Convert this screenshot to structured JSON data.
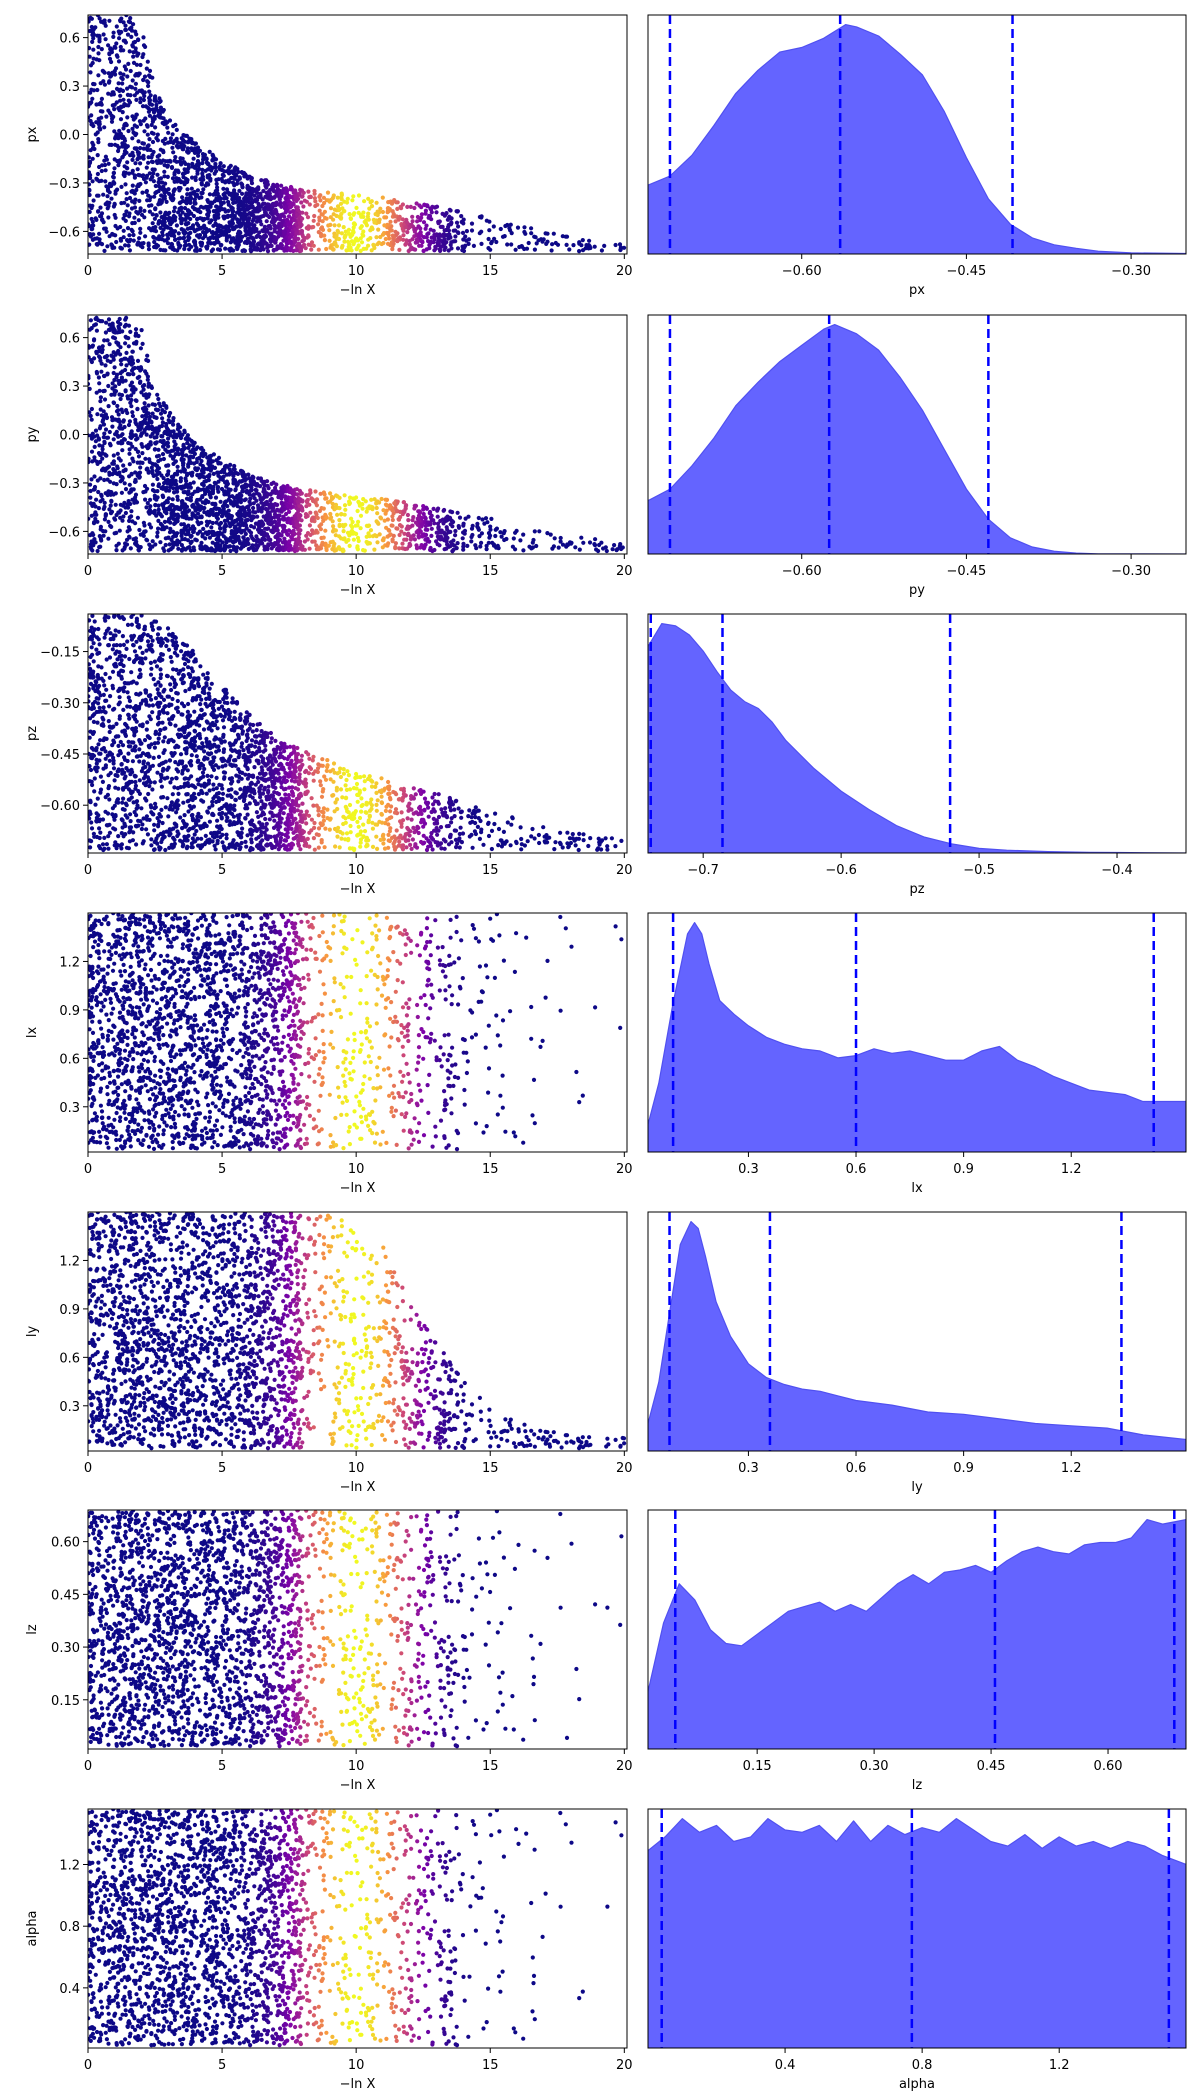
{
  "colors": {
    "kde_fill": "#6464ff",
    "kde_edge": "#5050f0",
    "quantile_line": "#0000ff",
    "colormap": [
      "#0d0887",
      "#7e03a8",
      "#cc4778",
      "#f89540",
      "#f0f921"
    ]
  },
  "chart_data": [
    {
      "type": "scatter",
      "panel": "trace-px",
      "xlabel": "−ln X",
      "ylabel": "px",
      "xlim": [
        0,
        20.1
      ],
      "ylim": [
        -0.74,
        0.74
      ],
      "xticks": [
        0,
        5,
        10,
        15,
        20
      ],
      "xtick_labels": [
        "0",
        "5",
        "10",
        "15",
        "20"
      ],
      "yticks": [
        0.6,
        0.3,
        0.0,
        -0.3,
        -0.6
      ],
      "ytick_labels": [
        "0.6",
        "0.3",
        "0.0",
        "−0.3",
        "−0.6"
      ],
      "envelope": [
        [
          0,
          0.74
        ],
        [
          1.5,
          0.74
        ],
        [
          2,
          0.65
        ],
        [
          2.5,
          0.3
        ],
        [
          3,
          0.1
        ],
        [
          4,
          -0.05
        ],
        [
          5,
          -0.15
        ],
        [
          6,
          -0.25
        ],
        [
          7,
          -0.3
        ],
        [
          8,
          -0.34
        ],
        [
          10,
          -0.37
        ],
        [
          12,
          -0.41
        ],
        [
          14,
          -0.48
        ],
        [
          15,
          -0.52
        ],
        [
          16,
          -0.56
        ],
        [
          17,
          -0.6
        ],
        [
          18,
          -0.63
        ],
        [
          19,
          -0.66
        ],
        [
          20,
          -0.68
        ]
      ],
      "color_peak": 10,
      "color_width": 1.5
    },
    {
      "type": "area",
      "panel": "kde-px",
      "xlabel": "px",
      "xlim": [
        -0.74,
        -0.25
      ],
      "xticks": [
        -0.6,
        -0.45,
        -0.3
      ],
      "xtick_labels": [
        "−0.60",
        "−0.45",
        "−0.30"
      ],
      "x": [
        -0.74,
        -0.72,
        -0.7,
        -0.68,
        -0.66,
        -0.64,
        -0.62,
        -0.6,
        -0.58,
        -0.56,
        -0.55,
        -0.53,
        -0.51,
        -0.49,
        -0.47,
        -0.45,
        -0.43,
        -0.41,
        -0.39,
        -0.37,
        -0.35,
        -0.33,
        -0.3,
        -0.25
      ],
      "density": [
        0.3,
        0.34,
        0.43,
        0.56,
        0.7,
        0.8,
        0.88,
        0.9,
        0.94,
        1.0,
        0.99,
        0.95,
        0.87,
        0.78,
        0.62,
        0.42,
        0.24,
        0.13,
        0.07,
        0.04,
        0.025,
        0.012,
        0.005,
        0.002
      ],
      "quantiles": [
        -0.72,
        -0.565,
        -0.408
      ]
    },
    {
      "type": "scatter",
      "panel": "trace-py",
      "xlabel": "−ln X",
      "ylabel": "py",
      "xlim": [
        0,
        20.1
      ],
      "ylim": [
        -0.74,
        0.74
      ],
      "xticks": [
        0,
        5,
        10,
        15,
        20
      ],
      "xtick_labels": [
        "0",
        "5",
        "10",
        "15",
        "20"
      ],
      "yticks": [
        0.6,
        0.3,
        0.0,
        -0.3,
        -0.6
      ],
      "ytick_labels": [
        "0.6",
        "0.3",
        "0.0",
        "−0.3",
        "−0.6"
      ],
      "envelope": [
        [
          0,
          0.74
        ],
        [
          1.5,
          0.74
        ],
        [
          2,
          0.65
        ],
        [
          2.5,
          0.3
        ],
        [
          3,
          0.15
        ],
        [
          4,
          -0.05
        ],
        [
          5,
          -0.15
        ],
        [
          6,
          -0.25
        ],
        [
          7,
          -0.3
        ],
        [
          8,
          -0.34
        ],
        [
          10,
          -0.38
        ],
        [
          12,
          -0.42
        ],
        [
          14,
          -0.49
        ],
        [
          15,
          -0.52
        ],
        [
          16,
          -0.56
        ],
        [
          17,
          -0.6
        ],
        [
          18,
          -0.63
        ],
        [
          19,
          -0.65
        ],
        [
          20,
          -0.68
        ]
      ],
      "color_peak": 10,
      "color_width": 1.5
    },
    {
      "type": "area",
      "panel": "kde-py",
      "xlabel": "py",
      "xlim": [
        -0.74,
        -0.25
      ],
      "xticks": [
        -0.6,
        -0.45,
        -0.3
      ],
      "xtick_labels": [
        "−0.60",
        "−0.45",
        "−0.30"
      ],
      "x": [
        -0.74,
        -0.72,
        -0.7,
        -0.68,
        -0.66,
        -0.64,
        -0.62,
        -0.6,
        -0.58,
        -0.57,
        -0.55,
        -0.53,
        -0.51,
        -0.49,
        -0.47,
        -0.45,
        -0.43,
        -0.41,
        -0.39,
        -0.37,
        -0.35,
        -0.33,
        -0.25
      ],
      "density": [
        0.23,
        0.28,
        0.38,
        0.5,
        0.64,
        0.74,
        0.83,
        0.9,
        0.97,
        0.99,
        0.95,
        0.88,
        0.76,
        0.62,
        0.45,
        0.28,
        0.15,
        0.07,
        0.03,
        0.012,
        0.004,
        0.001,
        0.0
      ],
      "quantiles": [
        -0.72,
        -0.575,
        -0.43
      ]
    },
    {
      "type": "scatter",
      "panel": "trace-pz",
      "xlabel": "−ln X",
      "ylabel": "pz",
      "xlim": [
        0,
        20.1
      ],
      "ylim": [
        -0.74,
        -0.04
      ],
      "xticks": [
        0,
        5,
        10,
        15,
        20
      ],
      "xtick_labels": [
        "0",
        "5",
        "10",
        "15",
        "20"
      ],
      "yticks": [
        -0.15,
        -0.3,
        -0.45,
        -0.6
      ],
      "ytick_labels": [
        "−0.15",
        "−0.30",
        "−0.45",
        "−0.60"
      ],
      "envelope": [
        [
          0,
          -0.04
        ],
        [
          2,
          -0.04
        ],
        [
          3,
          -0.08
        ],
        [
          4,
          -0.15
        ],
        [
          5,
          -0.25
        ],
        [
          6,
          -0.33
        ],
        [
          7,
          -0.4
        ],
        [
          8,
          -0.44
        ],
        [
          9,
          -0.47
        ],
        [
          10,
          -0.5
        ],
        [
          12,
          -0.54
        ],
        [
          14,
          -0.59
        ],
        [
          16,
          -0.64
        ],
        [
          17,
          -0.66
        ],
        [
          18,
          -0.68
        ],
        [
          20,
          -0.7
        ]
      ],
      "color_peak": 10,
      "color_width": 1.5
    },
    {
      "type": "area",
      "panel": "kde-pz",
      "xlabel": "pz",
      "xlim": [
        -0.74,
        -0.35
      ],
      "xticks": [
        -0.7,
        -0.6,
        -0.5,
        -0.4
      ],
      "xtick_labels": [
        "−0.7",
        "−0.6",
        "−0.5",
        "−0.4"
      ],
      "x": [
        -0.74,
        -0.73,
        -0.72,
        -0.71,
        -0.7,
        -0.69,
        -0.68,
        -0.67,
        -0.66,
        -0.65,
        -0.64,
        -0.62,
        -0.6,
        -0.58,
        -0.56,
        -0.54,
        -0.52,
        -0.5,
        -0.48,
        -0.45,
        -0.42,
        -0.4,
        -0.35
      ],
      "density": [
        0.9,
        1.0,
        0.99,
        0.95,
        0.88,
        0.79,
        0.71,
        0.66,
        0.63,
        0.57,
        0.49,
        0.37,
        0.27,
        0.19,
        0.12,
        0.07,
        0.04,
        0.02,
        0.012,
        0.006,
        0.003,
        0.002,
        0.0
      ],
      "quantiles": [
        -0.738,
        -0.686,
        -0.521
      ]
    },
    {
      "type": "scatter",
      "panel": "trace-lx",
      "xlabel": "−ln X",
      "ylabel": "lx",
      "xlim": [
        0,
        20.1
      ],
      "ylim": [
        0.02,
        1.5
      ],
      "xticks": [
        0,
        5,
        10,
        15,
        20
      ],
      "xtick_labels": [
        "0",
        "5",
        "10",
        "15",
        "20"
      ],
      "yticks": [
        1.2,
        0.9,
        0.6,
        0.3
      ],
      "ytick_labels": [
        "1.2",
        "0.9",
        "0.6",
        "0.3"
      ],
      "envelope": [
        [
          0,
          1.5
        ],
        [
          20,
          1.5
        ]
      ],
      "fan": true,
      "color_peak": 10,
      "color_width": 1.5
    },
    {
      "type": "area",
      "panel": "kde-lx",
      "xlabel": "lx",
      "xlim": [
        0.02,
        1.52
      ],
      "xticks": [
        0.3,
        0.6,
        0.9,
        1.2
      ],
      "xtick_labels": [
        "0.3",
        "0.6",
        "0.9",
        "1.2"
      ],
      "x": [
        0.02,
        0.05,
        0.09,
        0.13,
        0.15,
        0.17,
        0.19,
        0.22,
        0.26,
        0.3,
        0.35,
        0.4,
        0.45,
        0.5,
        0.55,
        0.6,
        0.65,
        0.7,
        0.75,
        0.8,
        0.85,
        0.9,
        0.95,
        1.0,
        1.05,
        1.1,
        1.15,
        1.2,
        1.25,
        1.3,
        1.35,
        1.4,
        1.45,
        1.52
      ],
      "density": [
        0.12,
        0.3,
        0.65,
        0.95,
        1.0,
        0.95,
        0.82,
        0.66,
        0.6,
        0.55,
        0.5,
        0.47,
        0.45,
        0.44,
        0.41,
        0.42,
        0.45,
        0.43,
        0.44,
        0.42,
        0.4,
        0.4,
        0.44,
        0.46,
        0.4,
        0.37,
        0.33,
        0.3,
        0.27,
        0.26,
        0.25,
        0.22,
        0.22,
        0.22
      ],
      "quantiles": [
        0.09,
        0.6,
        1.43
      ]
    },
    {
      "type": "scatter",
      "panel": "trace-ly",
      "xlabel": "−ln X",
      "ylabel": "ly",
      "xlim": [
        0,
        20.1
      ],
      "ylim": [
        0.02,
        1.5
      ],
      "xticks": [
        0,
        5,
        10,
        15,
        20
      ],
      "xtick_labels": [
        "0",
        "5",
        "10",
        "15",
        "20"
      ],
      "yticks": [
        1.2,
        0.9,
        0.6,
        0.3
      ],
      "ytick_labels": [
        "1.2",
        "0.9",
        "0.6",
        "0.3"
      ],
      "envelope": [
        [
          0,
          1.5
        ],
        [
          9,
          1.5
        ],
        [
          10,
          1.42
        ],
        [
          11,
          1.3
        ],
        [
          12,
          0.95
        ],
        [
          13,
          0.7
        ],
        [
          14,
          0.45
        ],
        [
          15,
          0.3
        ],
        [
          16,
          0.2
        ],
        [
          17,
          0.15
        ],
        [
          18,
          0.12
        ],
        [
          20,
          0.1
        ]
      ],
      "color_peak": 10,
      "color_width": 1.5
    },
    {
      "type": "area",
      "panel": "kde-ly",
      "xlabel": "ly",
      "xlim": [
        0.02,
        1.52
      ],
      "xticks": [
        0.3,
        0.6,
        0.9,
        1.2
      ],
      "xtick_labels": [
        "0.3",
        "0.6",
        "0.9",
        "1.2"
      ],
      "x": [
        0.02,
        0.05,
        0.08,
        0.11,
        0.14,
        0.16,
        0.18,
        0.21,
        0.25,
        0.3,
        0.35,
        0.4,
        0.45,
        0.5,
        0.55,
        0.6,
        0.7,
        0.8,
        0.9,
        1.0,
        1.1,
        1.2,
        1.3,
        1.4,
        1.52
      ],
      "density": [
        0.12,
        0.3,
        0.6,
        0.9,
        1.0,
        0.97,
        0.85,
        0.65,
        0.5,
        0.38,
        0.32,
        0.29,
        0.27,
        0.26,
        0.24,
        0.22,
        0.2,
        0.17,
        0.16,
        0.14,
        0.12,
        0.11,
        0.1,
        0.07,
        0.05
      ],
      "quantiles": [
        0.08,
        0.36,
        1.34
      ]
    },
    {
      "type": "scatter",
      "panel": "trace-lz",
      "xlabel": "−ln X",
      "ylabel": "lz",
      "xlim": [
        0,
        20.1
      ],
      "ylim": [
        0.01,
        0.69
      ],
      "xticks": [
        0,
        5,
        10,
        15,
        20
      ],
      "xtick_labels": [
        "0",
        "5",
        "10",
        "15",
        "20"
      ],
      "yticks": [
        0.6,
        0.45,
        0.3,
        0.15
      ],
      "ytick_labels": [
        "0.60",
        "0.45",
        "0.30",
        "0.15"
      ],
      "envelope": [
        [
          0,
          0.69
        ],
        [
          20,
          0.69
        ]
      ],
      "fan": true,
      "color_peak": 10,
      "color_width": 1.5
    },
    {
      "type": "area",
      "panel": "kde-lz",
      "xlabel": "lz",
      "xlim": [
        0.01,
        0.7
      ],
      "xticks": [
        0.15,
        0.3,
        0.45,
        0.6
      ],
      "xtick_labels": [
        "0.15",
        "0.30",
        "0.45",
        "0.60"
      ],
      "x": [
        0.01,
        0.03,
        0.05,
        0.07,
        0.09,
        0.11,
        0.13,
        0.15,
        0.17,
        0.19,
        0.21,
        0.23,
        0.25,
        0.27,
        0.29,
        0.31,
        0.33,
        0.35,
        0.37,
        0.39,
        0.41,
        0.43,
        0.45,
        0.47,
        0.49,
        0.51,
        0.53,
        0.55,
        0.57,
        0.59,
        0.61,
        0.63,
        0.65,
        0.67,
        0.7
      ],
      "density": [
        0.25,
        0.55,
        0.72,
        0.65,
        0.52,
        0.46,
        0.45,
        0.5,
        0.55,
        0.6,
        0.62,
        0.64,
        0.6,
        0.63,
        0.6,
        0.66,
        0.72,
        0.76,
        0.72,
        0.77,
        0.78,
        0.8,
        0.77,
        0.82,
        0.86,
        0.88,
        0.86,
        0.85,
        0.89,
        0.9,
        0.9,
        0.92,
        1.0,
        0.98,
        1.0
      ],
      "quantiles": [
        0.045,
        0.455,
        0.685
      ]
    },
    {
      "type": "scatter",
      "panel": "trace-alpha",
      "xlabel": "−ln X",
      "ylabel": "alpha",
      "xlim": [
        0,
        20.1
      ],
      "ylim": [
        0.01,
        1.56
      ],
      "xticks": [
        0,
        5,
        10,
        15,
        20
      ],
      "xtick_labels": [
        "0",
        "5",
        "10",
        "15",
        "20"
      ],
      "yticks": [
        1.2,
        0.8,
        0.4
      ],
      "ytick_labels": [
        "1.2",
        "0.8",
        "0.4"
      ],
      "envelope": [
        [
          0,
          1.56
        ],
        [
          20,
          1.56
        ]
      ],
      "fan": true,
      "color_peak": 10,
      "color_width": 1.5
    },
    {
      "type": "area",
      "panel": "kde-alpha",
      "xlabel": "alpha",
      "xlim": [
        0.0,
        1.57
      ],
      "xticks": [
        0.4,
        0.8,
        1.2
      ],
      "xtick_labels": [
        "0.4",
        "0.8",
        "1.2"
      ],
      "x": [
        0.0,
        0.05,
        0.1,
        0.15,
        0.2,
        0.25,
        0.3,
        0.35,
        0.4,
        0.45,
        0.5,
        0.55,
        0.6,
        0.65,
        0.7,
        0.75,
        0.8,
        0.85,
        0.9,
        0.95,
        1.0,
        1.05,
        1.1,
        1.15,
        1.2,
        1.25,
        1.3,
        1.35,
        1.4,
        1.45,
        1.5,
        1.57
      ],
      "density": [
        0.86,
        0.92,
        1.0,
        0.94,
        0.97,
        0.9,
        0.92,
        1.0,
        0.95,
        0.94,
        0.97,
        0.9,
        0.99,
        0.9,
        0.97,
        0.93,
        0.96,
        0.94,
        1.0,
        0.95,
        0.9,
        0.88,
        0.93,
        0.87,
        0.92,
        0.88,
        0.9,
        0.87,
        0.9,
        0.88,
        0.84,
        0.8
      ],
      "quantiles": [
        0.04,
        0.77,
        1.52
      ]
    }
  ]
}
